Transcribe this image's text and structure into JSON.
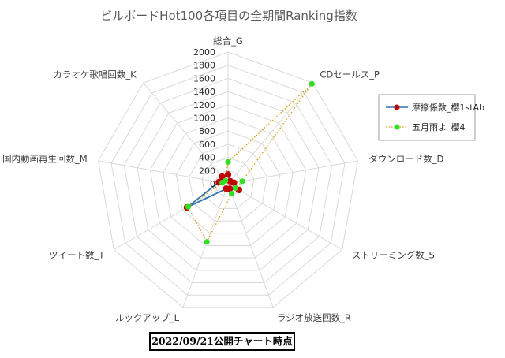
{
  "chart_data": {
    "type": "radar",
    "title": "ビルボードHot100各項目の全期間Ranking指数",
    "axes": [
      "総合_G",
      "CDセールス_P",
      "ダウンロード数_D",
      "ストリーミング数_S",
      "ラジオ放送回数_R",
      "ルックアップ_L",
      "ツイート数_T",
      "国内動画再生回数_M",
      "カラオケ歌唱回数_K"
    ],
    "ticks": [
      "0",
      "200",
      "400",
      "600",
      "800",
      "1000",
      "1200",
      "1400",
      "1600",
      "1800",
      "2000"
    ],
    "rmax": 2000,
    "grid": true,
    "legend_position": "right",
    "series": [
      {
        "name": "摩擦係数_櫻1stAb",
        "color": "#2e75b6",
        "marker_color": "#c00000",
        "line": "solid",
        "values": [
          140,
          50,
          90,
          190,
          80,
          80,
          720,
          140,
          140
        ]
      },
      {
        "name": "五月雨よ_櫻4",
        "color": "#d4a017",
        "marker_color": "#33dd22",
        "line": "dotted",
        "values": [
          330,
          1980,
          220,
          130,
          160,
          940,
          700,
          90,
          60
        ]
      }
    ]
  },
  "footer": {
    "note": "2022/09/21公開チャート時点"
  }
}
